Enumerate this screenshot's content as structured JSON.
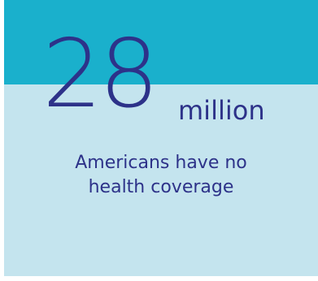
{
  "stat": {
    "number": "28",
    "unit": "million",
    "caption_line1": "Americans have no",
    "caption_line2": "health coverage"
  },
  "colors": {
    "top_band": "#1ab0cc",
    "background": "#c4e4ee",
    "text": "#2d3289"
  }
}
